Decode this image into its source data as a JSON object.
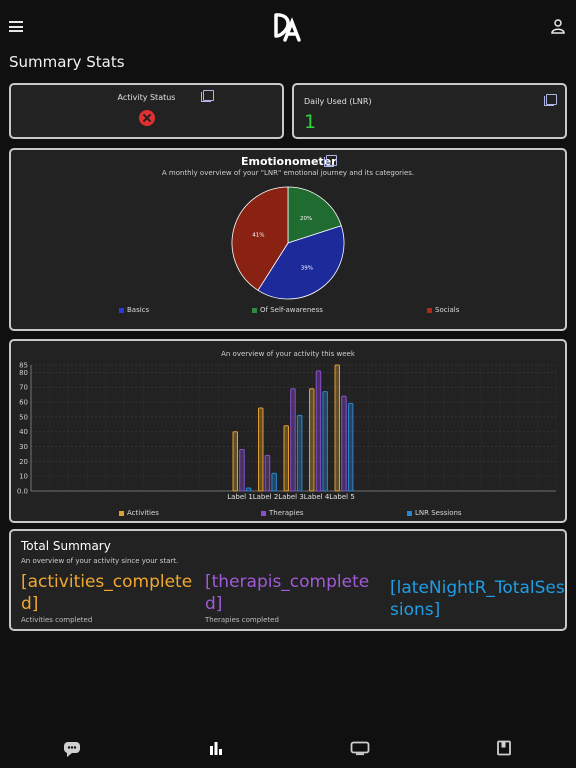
{
  "header": {
    "title": "Summary Stats"
  },
  "activity_status": {
    "title": "Activity Status",
    "status": "error"
  },
  "daily_used": {
    "title": "Daily Used (LNR)",
    "value": "1"
  },
  "emotionometer": {
    "title": "Emotionometer",
    "subtitle": "A monthly overview of your \"LNR\" emotional journey and its categories."
  },
  "weekly": {
    "subtitle": "An overview of your activity this week"
  },
  "total_summary": {
    "title": "Total Summary",
    "subtitle": "An overview of your activity since your start.",
    "items": [
      {
        "value": "[activities_completed]",
        "caption": "Activities completed",
        "color": "#f0a830"
      },
      {
        "value": "[therapis_completed]",
        "caption": "Therapies completed",
        "color": "#a15ad8"
      },
      {
        "value": "[lateNightR_TotalSessions]",
        "caption": "",
        "color": "#1e9ee6"
      }
    ]
  },
  "colors": {
    "card_border": "#c9c9c9",
    "status_error": "#e03030",
    "daily_value": "#32d23a"
  },
  "bottom_nav": [
    "chat-bubble-icon",
    "bar-chart-icon",
    "tv-icon",
    "book-icon"
  ],
  "chart_data": [
    {
      "type": "pie",
      "categories": [
        "Basics",
        "Of Self-awareness",
        "Socials"
      ],
      "values": [
        39,
        20,
        41
      ],
      "labels": [
        "39%",
        "20%",
        "41%"
      ],
      "colors": [
        "#1d2a9a",
        "#1f6b30",
        "#8a2214"
      ],
      "legend": "bottom"
    },
    {
      "type": "bar",
      "title": "An overview of your activity this week",
      "categories": [
        "Label 1",
        "Label 2",
        "Label 3",
        "Label 4",
        "Label 5"
      ],
      "series": [
        {
          "name": "Activities",
          "values": [
            40,
            56,
            44,
            69,
            85
          ],
          "color": "#e0a030"
        },
        {
          "name": "Therapies",
          "values": [
            28,
            24,
            69,
            81,
            64
          ],
          "color": "#8a4fd0"
        },
        {
          "name": "LNR Sessions",
          "values": [
            2,
            12,
            51,
            67,
            59
          ],
          "color": "#2a86d0"
        }
      ],
      "yticks": [
        "0.0",
        "10",
        "20",
        "30",
        "40",
        "50",
        "60",
        "70",
        "80",
        "85"
      ],
      "ylim": [
        0,
        85
      ],
      "grid": true,
      "legend": "bottom"
    }
  ]
}
